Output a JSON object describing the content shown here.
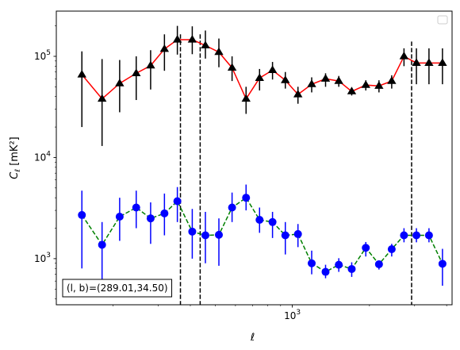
{
  "chart_data": {
    "type": "line",
    "title": "",
    "xlabel": "ℓ",
    "ylabel": "C_ℓ [mK²]",
    "xscale": "log",
    "yscale": "log",
    "xlim": [
      120,
      4200
    ],
    "ylim": [
      350,
      280000
    ],
    "x_tick_labels": [
      {
        "value": 1000,
        "base": "10",
        "exp": "3"
      }
    ],
    "y_tick_labels": [
      {
        "value": 1000,
        "base": "10",
        "exp": "3"
      },
      {
        "value": 10000,
        "base": "10",
        "exp": "4"
      },
      {
        "value": 100000,
        "base": "10",
        "exp": "5"
      }
    ],
    "legend": {
      "placement": "top-right",
      "entries": []
    },
    "annotation": "(l, b)=(289.01,34.50)",
    "vlines": [
      {
        "x": 366,
        "y_from": 350,
        "y_to": 165000,
        "style": "dashed",
        "color": "#000000"
      },
      {
        "x": 437,
        "y_from": 350,
        "y_to": 165000,
        "style": "dashed",
        "color": "#000000"
      },
      {
        "x": 2920,
        "y_from": 350,
        "y_to": 140000,
        "style": "dashed",
        "color": "#000000"
      }
    ],
    "series": [
      {
        "marker": "triangle",
        "line_color": "#ff0000",
        "line_style": "solid",
        "marker_color": "#000000",
        "errorbar_color": "#000000",
        "x": [
          151,
          181,
          212,
          246,
          280,
          317,
          356,
          407,
          458,
          517,
          582,
          660,
          745,
          837,
          939,
          1052,
          1190,
          1348,
          1518,
          1705,
          1935,
          2178,
          2442,
          2727,
          3049,
          3413,
          3853
        ],
        "y": [
          66000,
          38000,
          54000,
          68000,
          81000,
          118000,
          146000,
          146000,
          128000,
          110000,
          77000,
          38000,
          61000,
          73000,
          58000,
          42000,
          53000,
          60000,
          57000,
          45000,
          52000,
          51000,
          57000,
          100000,
          86000,
          86000,
          86000
        ],
        "yerr_low": [
          20000,
          13000,
          28000,
          37000,
          47000,
          72000,
          104000,
          105000,
          95000,
          78000,
          57000,
          27000,
          46000,
          59000,
          48000,
          34000,
          44000,
          50000,
          50000,
          41000,
          46000,
          44000,
          48000,
          80000,
          53000,
          53000,
          53000
        ],
        "yerr_high": [
          112000,
          94000,
          92000,
          100000,
          115000,
          165000,
          200000,
          198000,
          180000,
          150000,
          100000,
          50000,
          75000,
          88000,
          70000,
          50000,
          62000,
          68000,
          64000,
          49000,
          58000,
          58000,
          65000,
          120000,
          120000,
          120000,
          120000
        ]
      },
      {
        "marker": "circle",
        "line_color": "#008000",
        "line_style": "dashed",
        "marker_color": "#0000ff",
        "errorbar_color": "#0000ff",
        "x": [
          151,
          181,
          212,
          246,
          280,
          317,
          356,
          407,
          458,
          517,
          582,
          660,
          745,
          837,
          939,
          1052,
          1190,
          1348,
          1518,
          1705,
          1935,
          2178,
          2442,
          2727,
          3049,
          3413,
          3853
        ],
        "y": [
          2700,
          1370,
          2600,
          3200,
          2500,
          2800,
          3700,
          1850,
          1700,
          1720,
          3200,
          4000,
          2420,
          2300,
          1700,
          1750,
          900,
          740,
          870,
          790,
          1280,
          880,
          1240,
          1700,
          1700,
          1700,
          890
        ],
        "yerr_low": [
          800,
          450,
          1500,
          2000,
          1400,
          1700,
          2300,
          1000,
          900,
          850,
          2300,
          3000,
          1800,
          1600,
          1100,
          1300,
          700,
          640,
          740,
          660,
          1050,
          780,
          1050,
          1450,
          1450,
          1450,
          540
        ],
        "yerr_high": [
          4700,
          2300,
          4000,
          4700,
          3600,
          4400,
          5100,
          3100,
          2900,
          2500,
          4500,
          5400,
          3200,
          2900,
          2300,
          2200,
          1200,
          870,
          1010,
          920,
          1460,
          960,
          1400,
          2000,
          2000,
          2000,
          1250
        ]
      }
    ]
  }
}
